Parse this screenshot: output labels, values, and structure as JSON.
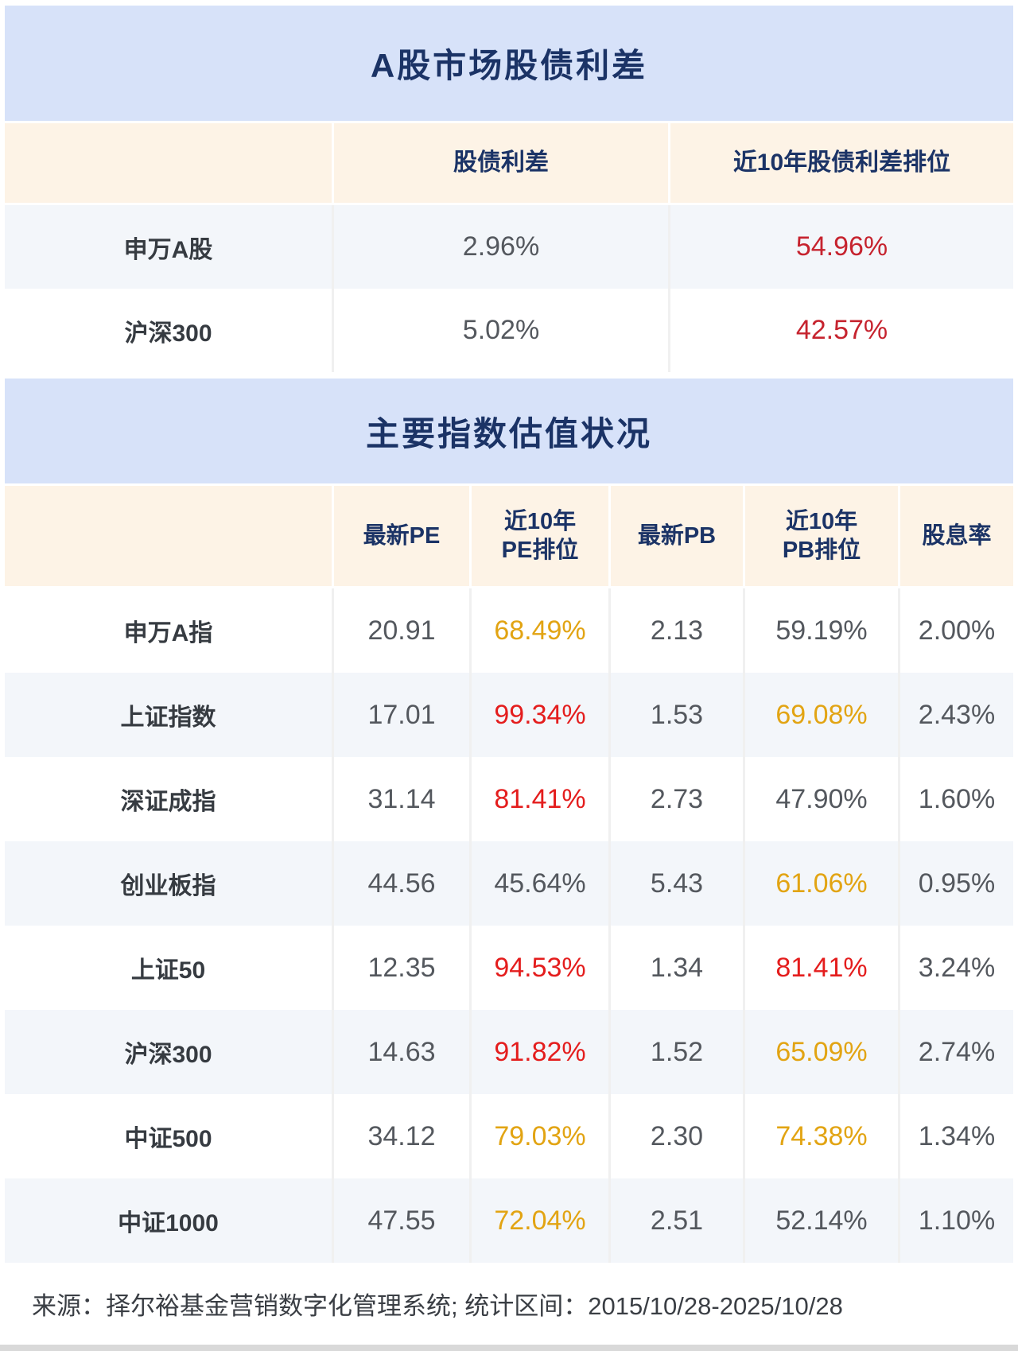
{
  "colors": {
    "gray": "#54585e",
    "red": "#e41d1d",
    "darkred": "#c6232e",
    "orange": "#e2a413",
    "navy": "#1b3366",
    "band_blue": "#d7e2f9",
    "header_cream": "#fdf3e6",
    "row_alt_blue": "#f3f6fa"
  },
  "section1": {
    "title": "A股市场股债利差",
    "columns": [
      "股债利差",
      "近10年股债利差排位"
    ],
    "rows": [
      {
        "label": "申万A股",
        "spread": "2.96%",
        "spread_color": "gray",
        "rank": "54.96%",
        "rank_color": "darkred"
      },
      {
        "label": "沪深300",
        "spread": "5.02%",
        "spread_color": "gray",
        "rank": "42.57%",
        "rank_color": "darkred"
      }
    ]
  },
  "section2": {
    "title": "主要指数估值状况",
    "columns": [
      "最新PE",
      "近10年\nPE排位",
      "最新PB",
      "近10年\nPB排位",
      "股息率"
    ],
    "rows": [
      {
        "label": "申万A指",
        "pe": "20.91",
        "pe_color": "gray",
        "pe_rank": "68.49%",
        "pe_rank_color": "orange",
        "pb": "2.13",
        "pb_color": "gray",
        "pb_rank": "59.19%",
        "pb_rank_color": "gray",
        "div": "2.00%",
        "div_color": "gray"
      },
      {
        "label": "上证指数",
        "pe": "17.01",
        "pe_color": "gray",
        "pe_rank": "99.34%",
        "pe_rank_color": "red",
        "pb": "1.53",
        "pb_color": "gray",
        "pb_rank": "69.08%",
        "pb_rank_color": "orange",
        "div": "2.43%",
        "div_color": "gray"
      },
      {
        "label": "深证成指",
        "pe": "31.14",
        "pe_color": "gray",
        "pe_rank": "81.41%",
        "pe_rank_color": "red",
        "pb": "2.73",
        "pb_color": "gray",
        "pb_rank": "47.90%",
        "pb_rank_color": "gray",
        "div": "1.60%",
        "div_color": "gray"
      },
      {
        "label": "创业板指",
        "pe": "44.56",
        "pe_color": "gray",
        "pe_rank": "45.64%",
        "pe_rank_color": "gray",
        "pb": "5.43",
        "pb_color": "gray",
        "pb_rank": "61.06%",
        "pb_rank_color": "orange",
        "div": "0.95%",
        "div_color": "gray"
      },
      {
        "label": "上证50",
        "pe": "12.35",
        "pe_color": "gray",
        "pe_rank": "94.53%",
        "pe_rank_color": "red",
        "pb": "1.34",
        "pb_color": "gray",
        "pb_rank": "81.41%",
        "pb_rank_color": "red",
        "div": "3.24%",
        "div_color": "gray"
      },
      {
        "label": "沪深300",
        "pe": "14.63",
        "pe_color": "gray",
        "pe_rank": "91.82%",
        "pe_rank_color": "red",
        "pb": "1.52",
        "pb_color": "gray",
        "pb_rank": "65.09%",
        "pb_rank_color": "orange",
        "div": "2.74%",
        "div_color": "gray"
      },
      {
        "label": "中证500",
        "pe": "34.12",
        "pe_color": "gray",
        "pe_rank": "79.03%",
        "pe_rank_color": "orange",
        "pb": "2.30",
        "pb_color": "gray",
        "pb_rank": "74.38%",
        "pb_rank_color": "orange",
        "div": "1.34%",
        "div_color": "gray"
      },
      {
        "label": "中证1000",
        "pe": "47.55",
        "pe_color": "gray",
        "pe_rank": "72.04%",
        "pe_rank_color": "orange",
        "pb": "2.51",
        "pb_color": "gray",
        "pb_rank": "52.14%",
        "pb_rank_color": "gray",
        "div": "1.10%",
        "div_color": "gray"
      }
    ]
  },
  "footer": {
    "text": "来源：择尔裕基金营销数字化管理系统;  统计区间：2015/10/28-2025/10/28"
  },
  "chart_data": [
    {
      "type": "table",
      "title": "A股市场股债利差",
      "columns": [
        "",
        "股债利差",
        "近10年股债利差排位"
      ],
      "rows": [
        [
          "申万A股",
          "2.96%",
          "54.96%"
        ],
        [
          "沪深300",
          "5.02%",
          "42.57%"
        ]
      ]
    },
    {
      "type": "table",
      "title": "主要指数估值状况",
      "columns": [
        "",
        "最新PE",
        "近10年PE排位",
        "最新PB",
        "近10年PB排位",
        "股息率"
      ],
      "rows": [
        [
          "申万A指",
          20.91,
          "68.49%",
          2.13,
          "59.19%",
          "2.00%"
        ],
        [
          "上证指数",
          17.01,
          "99.34%",
          1.53,
          "69.08%",
          "2.43%"
        ],
        [
          "深证成指",
          31.14,
          "81.41%",
          2.73,
          "47.90%",
          "1.60%"
        ],
        [
          "创业板指",
          44.56,
          "45.64%",
          5.43,
          "61.06%",
          "0.95%"
        ],
        [
          "上证50",
          12.35,
          "94.53%",
          1.34,
          "81.41%",
          "3.24%"
        ],
        [
          "沪深300",
          14.63,
          "91.82%",
          1.52,
          "65.09%",
          "2.74%"
        ],
        [
          "中证500",
          34.12,
          "79.03%",
          2.3,
          "74.38%",
          "1.34%"
        ],
        [
          "中证1000",
          47.55,
          "72.04%",
          2.51,
          "52.14%",
          "1.10%"
        ]
      ],
      "footnote": "来源：择尔裕基金营销数字化管理系统;  统计区间：2015/10/28-2025/10/28"
    }
  ]
}
